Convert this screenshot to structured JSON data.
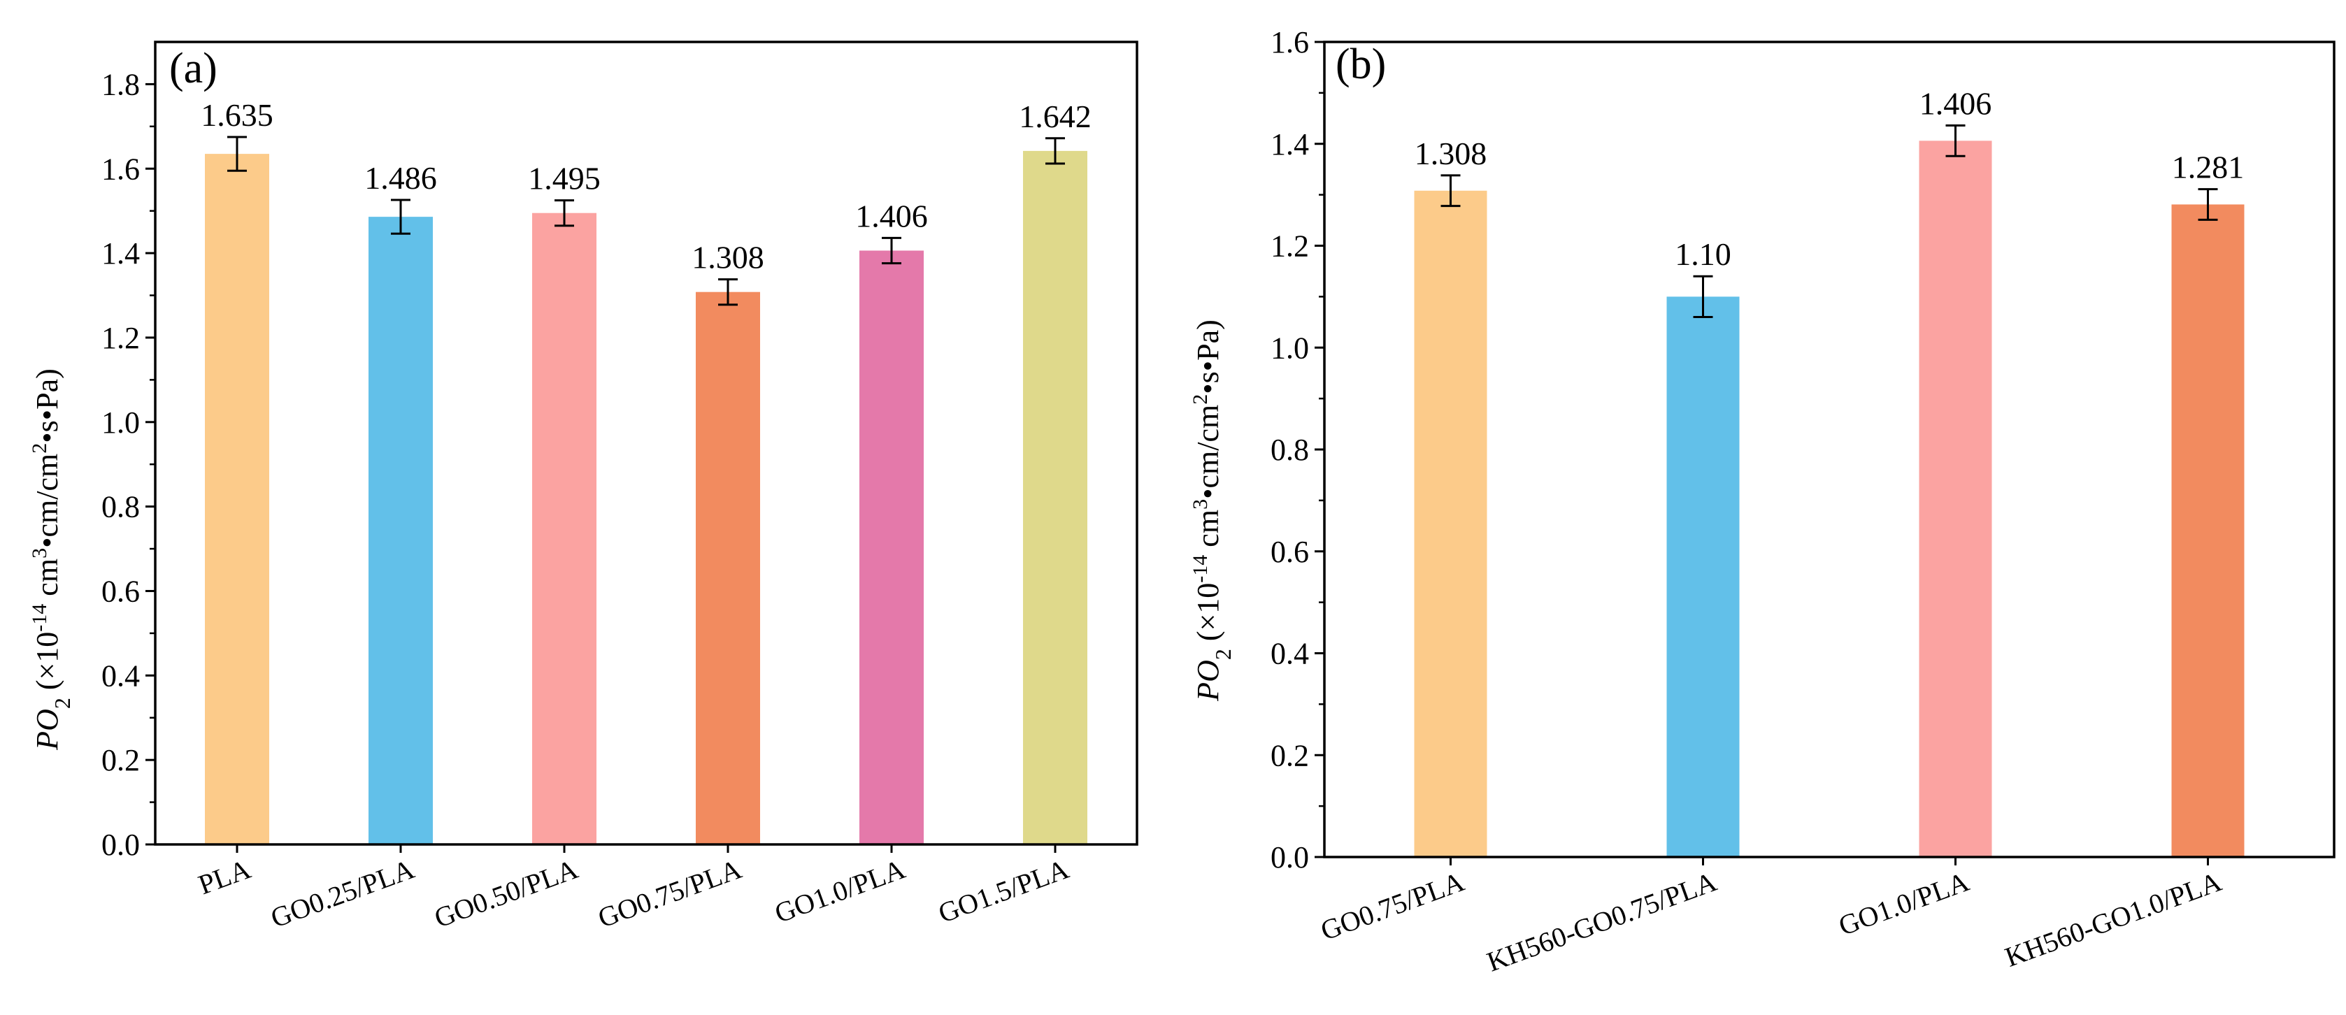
{
  "chart_data": [
    {
      "type": "bar",
      "panel_label": "(a)",
      "title": "",
      "xlabel": "",
      "ylabel_main": "PO",
      "ylabel_sub": "2",
      "ylabel_rest_1": " (×10",
      "ylabel_exp": "-14",
      "ylabel_rest_2": " cm",
      "ylabel_sup3": "3",
      "ylabel_rest_3": "•cm/cm",
      "ylabel_sup2": "2",
      "ylabel_rest_4": "•s•Pa)",
      "ylim": [
        0.0,
        1.9
      ],
      "yticks": [
        0.0,
        0.2,
        0.4,
        0.6,
        0.8,
        1.0,
        1.2,
        1.4,
        1.6,
        1.8
      ],
      "ytick_labels": [
        "0.0",
        "0.2",
        "0.4",
        "0.6",
        "0.8",
        "1.0",
        "1.2",
        "1.4",
        "1.6",
        "1.8"
      ],
      "categories": [
        "PLA",
        "GO0.25/PLA",
        "GO0.50/PLA",
        "GO0.75/PLA",
        "GO1.0/PLA",
        "GO1.5/PLA"
      ],
      "values": [
        1.635,
        1.486,
        1.495,
        1.308,
        1.406,
        1.642
      ],
      "errors": [
        0.04,
        0.04,
        0.03,
        0.03,
        0.03,
        0.03
      ],
      "value_labels": [
        "1.635",
        "1.486",
        "1.495",
        "1.308",
        "1.406",
        "1.642"
      ],
      "colors": [
        "#fccb8a",
        "#62c0e9",
        "#fba3a1",
        "#f28b5f",
        "#e479aa",
        "#dfd98b"
      ]
    },
    {
      "type": "bar",
      "panel_label": "(b)",
      "title": "",
      "xlabel": "",
      "ylabel_main": "PO",
      "ylabel_sub": "2",
      "ylabel_rest_1": " (×10",
      "ylabel_exp": "-14",
      "ylabel_rest_2": " cm",
      "ylabel_sup3": "3",
      "ylabel_rest_3": "•cm/cm",
      "ylabel_sup2": "2",
      "ylabel_rest_4": "•s•Pa)",
      "ylim": [
        0.0,
        1.6
      ],
      "yticks": [
        0.0,
        0.2,
        0.4,
        0.6,
        0.8,
        1.0,
        1.2,
        1.4,
        1.6
      ],
      "ytick_labels": [
        "0.0",
        "0.2",
        "0.4",
        "0.6",
        "0.8",
        "1.0",
        "1.2",
        "1.4",
        "1.6"
      ],
      "categories": [
        "GO0.75/PLA",
        "KH560-GO0.75/PLA",
        "GO1.0/PLA",
        "KH560-GO1.0/PLA"
      ],
      "values": [
        1.308,
        1.1,
        1.406,
        1.281
      ],
      "errors": [
        0.03,
        0.04,
        0.03,
        0.03
      ],
      "value_labels": [
        "1.308",
        "1.10",
        "1.406",
        "1.281"
      ],
      "colors": [
        "#fccb8a",
        "#62c0e9",
        "#fba3a1",
        "#f28b5f"
      ]
    }
  ]
}
